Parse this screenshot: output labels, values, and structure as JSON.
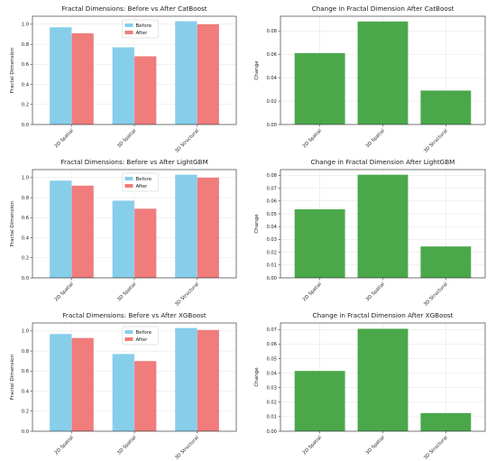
{
  "chart_data": [
    {
      "type": "bar",
      "title": "Fractal Dimensions: Before vs After CatBoost",
      "ylabel": "Fractal Dimension",
      "categories": [
        "2D Spatial",
        "3D Spatial",
        "3D Structural"
      ],
      "series": [
        {
          "name": "Before",
          "values": [
            0.97,
            0.77,
            1.03
          ]
        },
        {
          "name": "After",
          "values": [
            0.91,
            0.68,
            1.0
          ]
        }
      ],
      "ylim": [
        0,
        1.08
      ],
      "yticks": [
        "0.0",
        "0.2",
        "0.4",
        "0.6",
        "0.8",
        "1.0"
      ],
      "legend": "upper-center",
      "grid": true,
      "colors": [
        "#87ceeb",
        "#f07c7c"
      ]
    },
    {
      "type": "bar",
      "title": "Change in Fractal Dimension After CatBoost",
      "ylabel": "Change",
      "categories": [
        "2D Spatial",
        "3D Spatial",
        "3D Structural"
      ],
      "values": [
        0.061,
        0.088,
        0.029
      ],
      "ylim": [
        0,
        0.0925
      ],
      "yticks": [
        "0.00",
        "0.02",
        "0.04",
        "0.06",
        "0.08"
      ],
      "grid": true,
      "colors": [
        "#4aa84a"
      ]
    },
    {
      "type": "bar",
      "title": "Fractal Dimensions: Before vs After LightGBM",
      "ylabel": "Fractal Dimension",
      "categories": [
        "2D Spatial",
        "3D Spatial",
        "3D Structural"
      ],
      "series": [
        {
          "name": "Before",
          "values": [
            0.97,
            0.77,
            1.03
          ]
        },
        {
          "name": "After",
          "values": [
            0.92,
            0.69,
            1.0
          ]
        }
      ],
      "ylim": [
        0,
        1.08
      ],
      "yticks": [
        "0.0",
        "0.2",
        "0.4",
        "0.6",
        "0.8",
        "1.0"
      ],
      "legend": "upper-center",
      "grid": true,
      "colors": [
        "#87ceeb",
        "#f07c7c"
      ]
    },
    {
      "type": "bar",
      "title": "Change in Fractal Dimension After LightGBM",
      "ylabel": "Change",
      "categories": [
        "2D Spatial",
        "3D Spatial",
        "3D Structural"
      ],
      "values": [
        0.0535,
        0.0805,
        0.0245
      ],
      "ylim": [
        0,
        0.0845
      ],
      "yticks": [
        "0.00",
        "0.01",
        "0.02",
        "0.03",
        "0.04",
        "0.05",
        "0.06",
        "0.07",
        "0.08"
      ],
      "grid": true,
      "colors": [
        "#4aa84a"
      ]
    },
    {
      "type": "bar",
      "title": "Fractal Dimensions: Before vs After XGBoost",
      "ylabel": "Fractal Dimension",
      "categories": [
        "2D Spatial",
        "3D Spatial",
        "3D Structural"
      ],
      "series": [
        {
          "name": "Before",
          "values": [
            0.97,
            0.77,
            1.03
          ]
        },
        {
          "name": "After",
          "values": [
            0.93,
            0.7,
            1.01
          ]
        }
      ],
      "ylim": [
        0,
        1.08
      ],
      "yticks": [
        "0.0",
        "0.2",
        "0.4",
        "0.6",
        "0.8",
        "1.0"
      ],
      "legend": "upper-center",
      "grid": true,
      "colors": [
        "#87ceeb",
        "#f07c7c"
      ]
    },
    {
      "type": "bar",
      "title": "Change in Fractal Dimension After XGBoost",
      "ylabel": "Change",
      "categories": [
        "2D Spatial",
        "3D Spatial",
        "3D Structural"
      ],
      "values": [
        0.0415,
        0.0705,
        0.0125
      ],
      "ylim": [
        0,
        0.0745
      ],
      "yticks": [
        "0.00",
        "0.01",
        "0.02",
        "0.03",
        "0.04",
        "0.05",
        "0.06",
        "0.07"
      ],
      "grid": true,
      "colors": [
        "#4aa84a"
      ]
    }
  ]
}
